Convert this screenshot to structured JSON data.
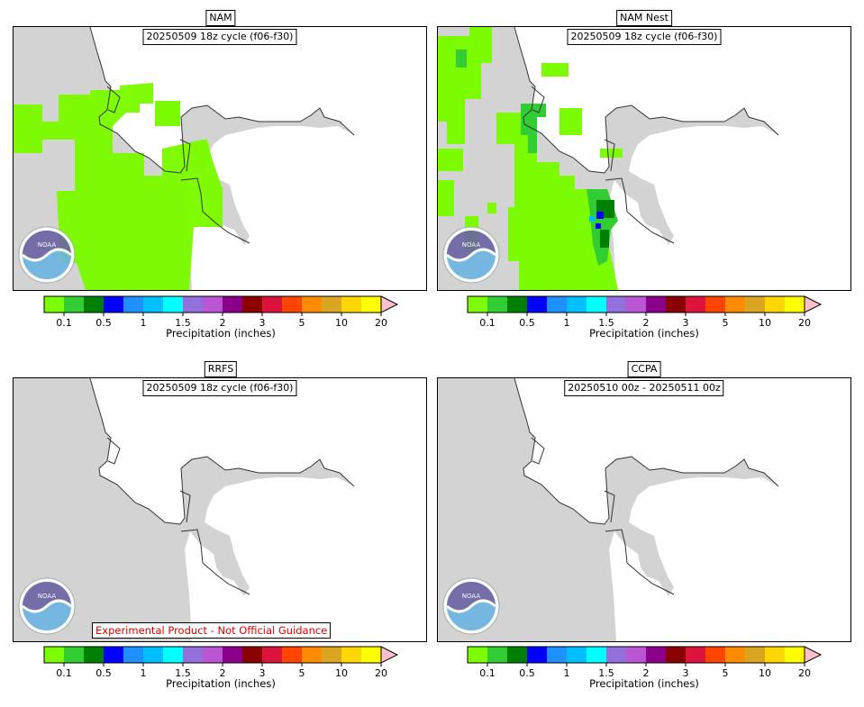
{
  "panels": [
    {
      "id": "nam",
      "title": "NAM",
      "cycle": "20250509 18z cycle (f06-f30)",
      "disclaimer": ""
    },
    {
      "id": "namnest",
      "title": "NAM Nest",
      "cycle": "20250509 18z cycle (f06-f30)",
      "disclaimer": ""
    },
    {
      "id": "rrfs",
      "title": "RRFS",
      "cycle": "20250509 18z cycle (f06-f30)",
      "disclaimer": "Experimental Product - Not Official Guidance"
    },
    {
      "id": "ccpa",
      "title": "CCPA",
      "cycle": "20250510 00z - 20250511 00z",
      "disclaimer": ""
    }
  ],
  "colorbar": {
    "label": "Precipitation (inches)",
    "colors": [
      "#7cfc00",
      "#32cd32",
      "#008000",
      "#0000ff",
      "#1e90ff",
      "#00bfff",
      "#00ffff",
      "#9370db",
      "#ba55d3",
      "#8b008b",
      "#8b0000",
      "#dc143c",
      "#ff4500",
      "#ff8c00",
      "#daa520",
      "#ffd700",
      "#ffff00",
      "#ffc0cb"
    ],
    "tick_labels": [
      "0.1",
      "0.5",
      "1",
      "1.5",
      "2",
      "3",
      "5",
      "10",
      "20"
    ]
  },
  "colors": {
    "land": "#d3d3d3",
    "light_precip": "#7cfc00",
    "medium_precip": "#32cd32",
    "dark_precip": "#008000",
    "heavy_precip": "#0000ff",
    "disclaimer_text": "#e00000"
  }
}
